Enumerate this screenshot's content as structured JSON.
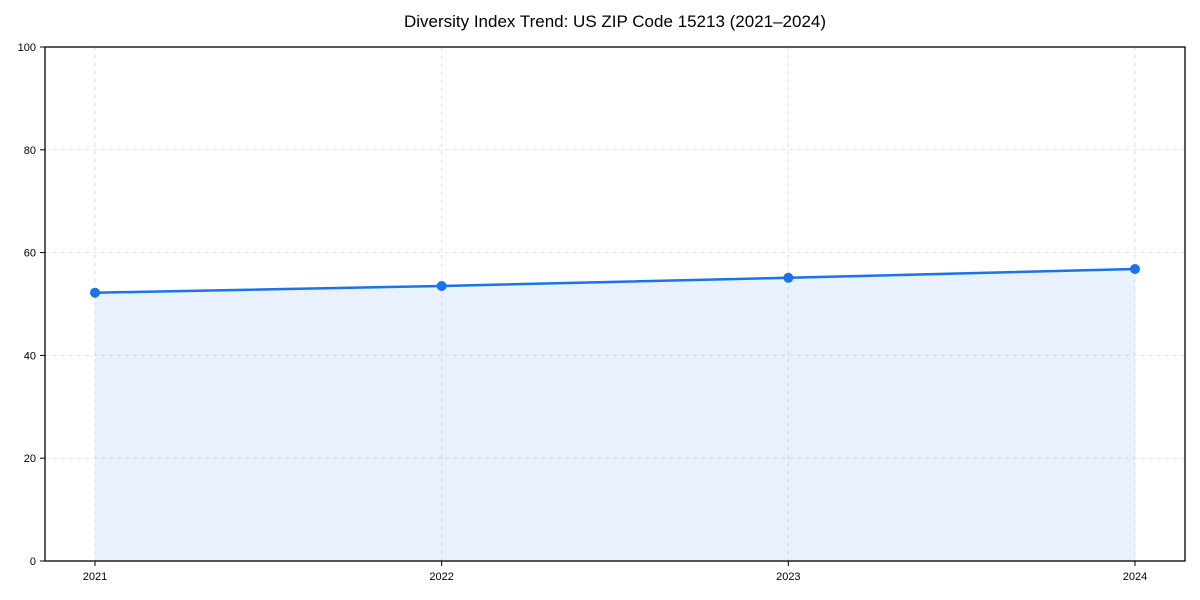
{
  "chart_data": {
    "type": "line",
    "title": "Diversity Index Trend: US ZIP Code 15213 (2021–2024)",
    "x": [
      "2021",
      "2022",
      "2023",
      "2024"
    ],
    "series": [
      {
        "name": "Diversity Index",
        "values": [
          52.2,
          53.5,
          55.1,
          56.8
        ]
      }
    ],
    "xlabel": "",
    "ylabel": "",
    "ylim": [
      0,
      100
    ],
    "yticks": [
      0,
      20,
      40,
      60,
      80,
      100
    ],
    "grid": true,
    "grid_style": "dashed",
    "legend": "none",
    "area": true,
    "colors": {
      "line": "#1a73e8",
      "marker": "#1a73e8",
      "area_fill": "rgba(26,115,232,0.10)",
      "gridline": "#e2e2e2",
      "spine": "#000000",
      "background": "#ffffff",
      "title_text": "#000000",
      "tick_text": "#000000"
    }
  }
}
